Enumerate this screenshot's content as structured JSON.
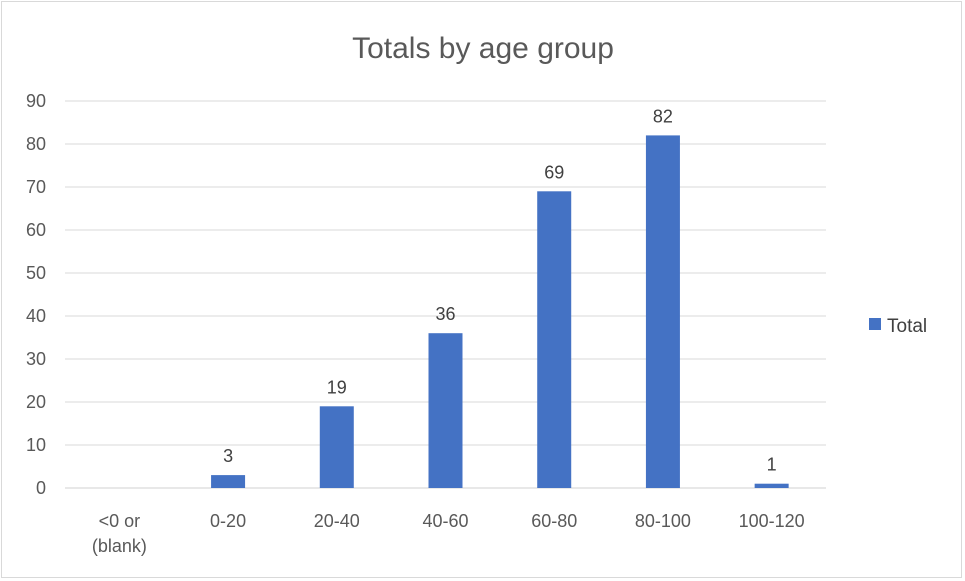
{
  "chart_data": {
    "type": "bar",
    "title": "Totals by age group",
    "categories": [
      [
        "<0 or",
        "(blank)"
      ],
      [
        "0-20"
      ],
      [
        "20-40"
      ],
      [
        "40-60"
      ],
      [
        "60-80"
      ],
      [
        "80-100"
      ],
      [
        "100-120"
      ]
    ],
    "series": [
      {
        "name": "Total",
        "values": [
          0,
          3,
          19,
          36,
          69,
          82,
          1
        ],
        "color": "#4472C4"
      }
    ],
    "data_labels": [
      "",
      "3",
      "19",
      "36",
      "69",
      "82",
      "1"
    ],
    "ylim": [
      0,
      90
    ],
    "yticks": [
      0,
      10,
      20,
      30,
      40,
      50,
      60,
      70,
      80,
      90
    ],
    "xlabel": "",
    "ylabel": "",
    "grid": true,
    "legend_position": "right"
  }
}
